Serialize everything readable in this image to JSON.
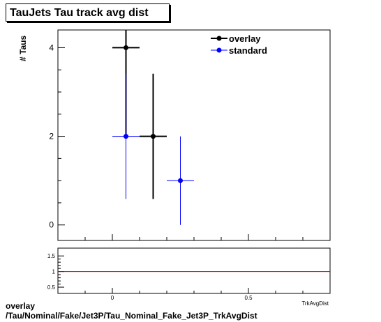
{
  "chart_data": [
    {
      "type": "scatter",
      "title": "TauJets Tau track avg dist",
      "ylabel": "# Taus",
      "xlim": [
        -0.2,
        0.8
      ],
      "ylim": [
        -0.35,
        4.4
      ],
      "yticks": [
        0,
        2,
        4
      ],
      "legend": "top-right",
      "series": [
        {
          "name": "overlay",
          "color": "#000000",
          "points": [
            {
              "x": 0.05,
              "xerr": 0.05,
              "y": 4,
              "yerr": 2
            },
            {
              "x": 0.15,
              "xerr": 0.05,
              "y": 2,
              "yerr": 1.414
            }
          ]
        },
        {
          "name": "standard",
          "color": "#0000ff",
          "points": [
            {
              "x": 0.05,
              "xerr": 0.05,
              "y": 2,
              "yerr": 1.414
            },
            {
              "x": 0.25,
              "xerr": 0.05,
              "y": 1,
              "yerr": 1
            }
          ]
        }
      ]
    },
    {
      "type": "line",
      "xlabel": "TrkAvgDist",
      "xlim": [
        -0.2,
        0.8
      ],
      "ylim": [
        0.3,
        1.75
      ],
      "yticks": [
        0.5,
        1,
        1.5
      ],
      "xticks": [
        0,
        0.5
      ],
      "reference_line": {
        "y": 1,
        "color": "#cc0000"
      }
    }
  ],
  "footer": {
    "line1": "overlay",
    "line2": "/Tau/Nominal/Fake/Jet3P/Tau_Nominal_Fake_Jet3P_TrkAvgDist"
  }
}
